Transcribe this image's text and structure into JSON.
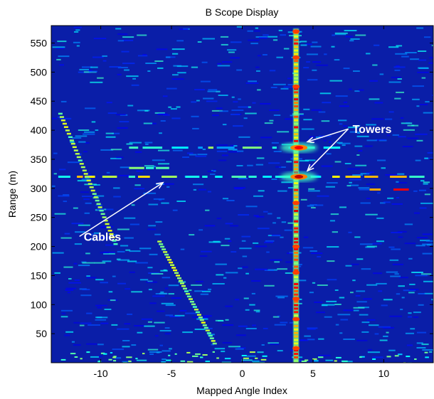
{
  "chart_data": {
    "type": "heatmap",
    "title": "B Scope Display",
    "xlabel": "Mapped Angle Index",
    "ylabel": "Range (m)",
    "xlim": [
      -13.5,
      13.5
    ],
    "ylim": [
      0,
      580
    ],
    "x_ticks": [
      -10,
      -5,
      0,
      5,
      10
    ],
    "y_ticks": [
      50,
      100,
      150,
      200,
      250,
      300,
      350,
      400,
      450,
      500,
      550
    ],
    "colormap": [
      "#00008f",
      "#0000ff",
      "#00ffff",
      "#ffff00",
      "#ff0000",
      "#800000"
    ],
    "background_color": "#0a1ea8",
    "features": {
      "tower_column": {
        "x": 3.8,
        "y_range": [
          0,
          575
        ]
      },
      "tower_reflections": [
        {
          "x": 4.0,
          "y": 320,
          "intensity": 1.0
        },
        {
          "x": 4.0,
          "y": 370,
          "intensity": 0.9
        }
      ],
      "horizontal_streaks": [
        {
          "y": 320,
          "x_range": [
            -13,
            12
          ],
          "intensity": 0.55
        },
        {
          "y": 370,
          "x_range": [
            -8,
            6
          ],
          "intensity": 0.45
        },
        {
          "y": 298,
          "x_range": [
            9,
            11
          ],
          "intensity": 0.7
        },
        {
          "y": 335,
          "x_range": [
            -8,
            -6
          ],
          "intensity": 0.6
        }
      ],
      "cable_traces": [
        {
          "from": [
            -13,
            430
          ],
          "to": [
            -9,
            200
          ]
        },
        {
          "from": [
            -6,
            210
          ],
          "to": [
            -2,
            30
          ]
        }
      ]
    },
    "annotations": [
      {
        "text": "Towers",
        "x": 7.8,
        "y": 395,
        "arrows_to": [
          [
            4.6,
            380
          ],
          [
            4.6,
            330
          ]
        ]
      },
      {
        "text": "Cables",
        "x": -11.2,
        "y": 210,
        "arrows_to": [
          [
            -5.6,
            310
          ]
        ]
      }
    ]
  }
}
